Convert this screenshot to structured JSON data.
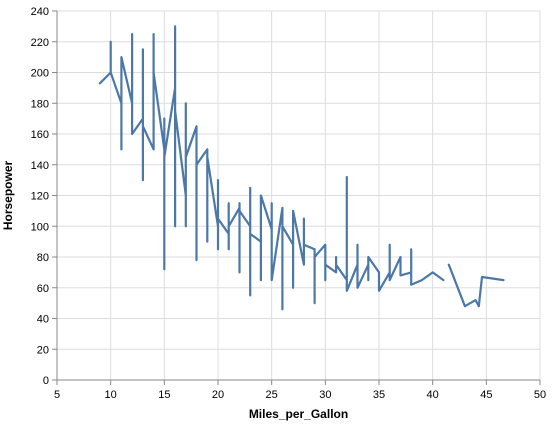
{
  "chart_data": {
    "type": "line",
    "xlabel": "Miles_per_Gallon",
    "ylabel": "Horsepower",
    "xlim": [
      5,
      50
    ],
    "ylim": [
      0,
      240
    ],
    "xticks": [
      5,
      10,
      15,
      20,
      25,
      30,
      35,
      40,
      45,
      50
    ],
    "yticks": [
      0,
      20,
      40,
      60,
      80,
      100,
      120,
      140,
      160,
      180,
      200,
      220,
      240
    ],
    "grid": true,
    "legend": "none",
    "series": [
      {
        "color": "#4c78a8",
        "segments": [
          [
            [
              9,
              193
            ],
            [
              10,
              200
            ],
            [
              10,
              220
            ],
            [
              10,
              215
            ],
            [
              10,
              200
            ],
            [
              11,
              180
            ],
            [
              11,
              150
            ],
            [
              11,
              210
            ],
            [
              12,
              180
            ],
            [
              12,
              225
            ],
            [
              12,
              160
            ],
            [
              13,
              170
            ],
            [
              13,
              130
            ],
            [
              13,
              215
            ],
            [
              13,
              165
            ],
            [
              14,
              150
            ],
            [
              14,
              225
            ],
            [
              14,
              165
            ],
            [
              14,
              200
            ],
            [
              15,
              150
            ],
            [
              15,
              72
            ],
            [
              15,
              170
            ],
            [
              15,
              145
            ],
            [
              16,
              190
            ],
            [
              16,
              100
            ],
            [
              16,
              230
            ],
            [
              16,
              105
            ],
            [
              16,
              150
            ],
            [
              16,
              175
            ],
            [
              17,
              120
            ],
            [
              17,
              180
            ],
            [
              17,
              100
            ],
            [
              17,
              145
            ],
            [
              18,
              165
            ],
            [
              18,
              100
            ],
            [
              18,
              150
            ],
            [
              18,
              78
            ],
            [
              18,
              140
            ],
            [
              19,
              150
            ],
            [
              19,
              90
            ],
            [
              19,
              110
            ],
            [
              19,
              145
            ],
            [
              20,
              100
            ],
            [
              20,
              85
            ],
            [
              20,
              130
            ],
            [
              20,
              105
            ],
            [
              21,
              95
            ],
            [
              21,
              115
            ],
            [
              21,
              85
            ],
            [
              21,
              100
            ],
            [
              22,
              112
            ],
            [
              22,
              115
            ],
            [
              22,
              70
            ],
            [
              22,
              110
            ],
            [
              23,
              100
            ],
            [
              23,
              55
            ],
            [
              23,
              125
            ],
            [
              23,
              95
            ],
            [
              24,
              90
            ],
            [
              24,
              110
            ],
            [
              24,
              65
            ],
            [
              24,
              120
            ],
            [
              25,
              98
            ],
            [
              25,
              80
            ],
            [
              25,
              115
            ],
            [
              25,
              65
            ],
            [
              26,
              112
            ],
            [
              26,
              46
            ],
            [
              26,
              100
            ],
            [
              27,
              88
            ],
            [
              27,
              60
            ],
            [
              27,
              110
            ],
            [
              28,
              75
            ],
            [
              28,
              105
            ],
            [
              28,
              88
            ],
            [
              29,
              85
            ],
            [
              29,
              50
            ],
            [
              29,
              80
            ],
            [
              30,
              88
            ],
            [
              30,
              65
            ],
            [
              30,
              75
            ],
            [
              31,
              70
            ],
            [
              31,
              80
            ],
            [
              31,
              75
            ],
            [
              32,
              65
            ],
            [
              32,
              90
            ],
            [
              32,
              70
            ],
            [
              32,
              132
            ],
            [
              32,
              58
            ],
            [
              33,
              75
            ],
            [
              33,
              88
            ],
            [
              33,
              60
            ],
            [
              34,
              75
            ],
            [
              34,
              65
            ],
            [
              34,
              80
            ],
            [
              35,
              70
            ],
            [
              35,
              68
            ],
            [
              35,
              58
            ],
            [
              36,
              70
            ],
            [
              36,
              88
            ],
            [
              36,
              65
            ],
            [
              37,
              80
            ],
            [
              37,
              68
            ],
            [
              38,
              70
            ],
            [
              38,
              85
            ],
            [
              38,
              62
            ],
            [
              39,
              65
            ],
            [
              40,
              70
            ],
            [
              41,
              65
            ]
          ],
          [
            [
              41.5,
              75
            ],
            [
              43,
              48
            ],
            [
              44,
              52
            ],
            [
              44.3,
              48
            ],
            [
              44.6,
              67
            ],
            [
              46.6,
              65
            ]
          ]
        ]
      }
    ]
  }
}
